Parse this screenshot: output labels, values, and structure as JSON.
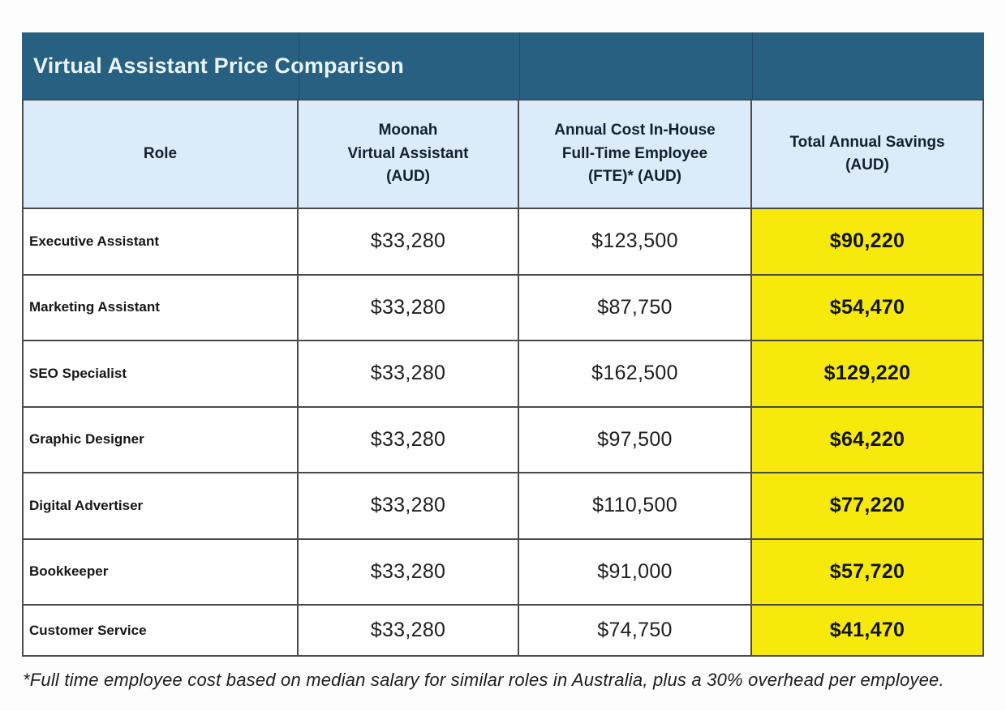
{
  "title_bar": {
    "text": "Virtual Assistant Price Comparison",
    "bg_color": "#276080",
    "text_color": "#e9f4f8",
    "divider_color": "#1d4a68"
  },
  "header": {
    "bg_color": "#dcebfa",
    "cells": {
      "role": "Role",
      "moonah": "Moonah\nVirtual Assistant\n(AUD)",
      "fte": "Annual Cost In-House\nFull-Time Employee\n(FTE)* (AUD)",
      "savings": "Total Annual Savings\n(AUD)"
    }
  },
  "highlight_color": "#f7e90b",
  "border_color": "#4a4a4a",
  "chart_data": {
    "type": "table",
    "title": "Virtual Assistant Price Comparison",
    "columns": [
      "Role",
      "Moonah Virtual Assistant (AUD)",
      "Annual Cost In-House Full-Time Employee (FTE)* (AUD)",
      "Total Annual Savings (AUD)"
    ],
    "rows": [
      [
        "Executive Assistant",
        "$33,280",
        "$123,500",
        "$90,220"
      ],
      [
        "Marketing Assistant",
        "$33,280",
        "$87,750",
        "$54,470"
      ],
      [
        "SEO Specialist",
        "$33,280",
        "$162,500",
        "$129,220"
      ],
      [
        "Graphic Designer",
        "$33,280",
        "$97,500",
        "$64,220"
      ],
      [
        "Digital Advertiser",
        "$33,280",
        "$110,500",
        "$77,220"
      ],
      [
        "Bookkeeper",
        "$33,280",
        "$91,000",
        "$57,720"
      ],
      [
        "Customer Service",
        "$33,280",
        "$74,750",
        "$41,470"
      ]
    ],
    "footnote": "*Full time employee cost based on median salary for similar roles in Australia, plus a 30% overhead per employee."
  }
}
